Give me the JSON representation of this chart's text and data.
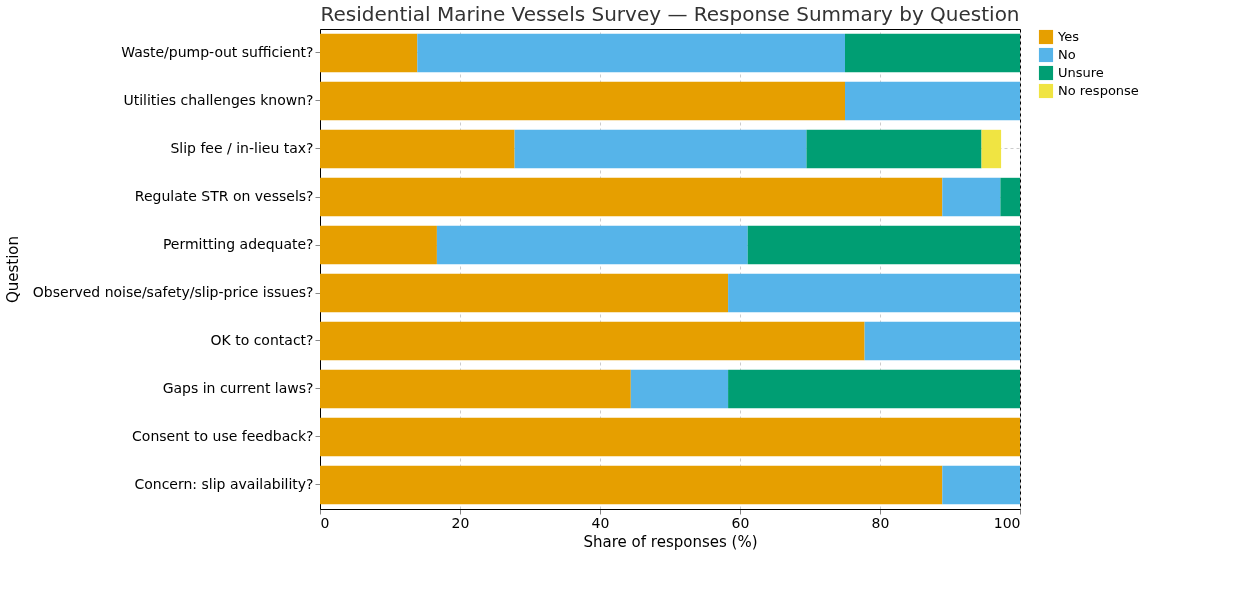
{
  "chart_data": {
    "type": "bar",
    "orientation": "horizontal",
    "stacked": true,
    "title": "Residential Marine Vessels Survey — Response Summary by Question",
    "xlabel": "Share of responses (%)",
    "ylabel": "Question",
    "categories": [
      "Waste/pump-out sufficient?",
      "Utilities challenges known?",
      "Slip fee / in-lieu tax?",
      "Regulate STR on vessels?",
      "Permitting adequate?",
      "Observed noise/safety/slip-price issues?",
      "OK to contact?",
      "Gaps in current laws?",
      "Consent to use feedback?",
      "Concern: slip availability?"
    ],
    "series": [
      {
        "name": "Yes",
        "color": "#e69f00",
        "values": [
          13.9,
          75.0,
          27.8,
          88.9,
          16.7,
          58.3,
          77.8,
          44.4,
          100,
          88.9
        ]
      },
      {
        "name": "No",
        "color": "#56b4e9",
        "values": [
          61.1,
          25.0,
          41.7,
          8.3,
          44.4,
          41.7,
          22.2,
          13.9,
          null,
          11.1
        ]
      },
      {
        "name": "Unsure",
        "color": "#009e73",
        "values": [
          25.0,
          null,
          25.0,
          2.8,
          38.9,
          null,
          null,
          41.7,
          null,
          null
        ]
      },
      {
        "name": "No response",
        "color": "#f0e442",
        "values": [
          null,
          null,
          2.8,
          null,
          null,
          null,
          null,
          null,
          null,
          null
        ]
      }
    ],
    "xlim": [
      0,
      100
    ],
    "xticks": [
      0,
      20,
      40,
      60,
      80,
      100
    ],
    "grid": true,
    "legend": "right"
  }
}
